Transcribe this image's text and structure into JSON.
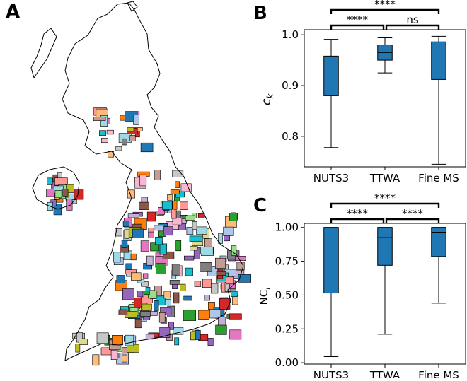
{
  "panels": {
    "a_label": "A",
    "b_label": "B",
    "c_label": "C"
  },
  "colors": {
    "box": "#1f77b4",
    "map_palette": [
      "#1f77b4",
      "#aec7e8",
      "#ff7f0e",
      "#ffbb78",
      "#2ca02c",
      "#98df8a",
      "#d62728",
      "#ff9896",
      "#9467bd",
      "#c5b0d5",
      "#8c564b",
      "#c49c94",
      "#e377c2",
      "#f7b6d2",
      "#7f7f7f",
      "#c7c7c7",
      "#bcbd22",
      "#dbdb8d",
      "#17becf",
      "#9edae5"
    ]
  },
  "chart_data": [
    {
      "type": "box",
      "panel": "B",
      "categories": [
        "NUTS3",
        "TTWA",
        "Fine MS"
      ],
      "ylabel": "c_k",
      "ylim": [
        0.74,
        1.01
      ],
      "yticks": [
        0.8,
        0.9,
        1.0
      ],
      "ytick_labels": [
        "0.8",
        "0.9",
        "1.0"
      ],
      "boxes": [
        {
          "whisker_low": 0.778,
          "q1": 0.88,
          "median": 0.923,
          "q3": 0.958,
          "whisker_high": 0.991
        },
        {
          "whisker_low": 0.925,
          "q1": 0.95,
          "median": 0.965,
          "q3": 0.98,
          "whisker_high": 0.994
        },
        {
          "whisker_low": 0.745,
          "q1": 0.912,
          "median": 0.962,
          "q3": 0.986,
          "whisker_high": 0.997
        }
      ],
      "significance": [
        {
          "from": 0,
          "to": 1,
          "label": "****"
        },
        {
          "from": 1,
          "to": 2,
          "label": "ns"
        },
        {
          "from": 0,
          "to": 2,
          "label": "****"
        }
      ]
    },
    {
      "type": "box",
      "panel": "C",
      "categories": [
        "NUTS3",
        "TTWA",
        "Fine MS"
      ],
      "ylabel": "NC_i",
      "ylim": [
        -0.01,
        1.03
      ],
      "yticks": [
        0.0,
        0.25,
        0.5,
        0.75,
        1.0
      ],
      "ytick_labels": [
        "0.00",
        "0.25",
        "0.50",
        "0.75",
        "1.00"
      ],
      "boxes": [
        {
          "whisker_low": 0.045,
          "q1": 0.515,
          "median": 0.855,
          "q3": 1.0,
          "whisker_high": 1.0
        },
        {
          "whisker_low": 0.21,
          "q1": 0.72,
          "median": 0.925,
          "q3": 1.0,
          "whisker_high": 1.0
        },
        {
          "whisker_low": 0.44,
          "q1": 0.785,
          "median": 0.965,
          "q3": 1.0,
          "whisker_high": 1.0
        }
      ],
      "significance": [
        {
          "from": 0,
          "to": 1,
          "label": "****"
        },
        {
          "from": 1,
          "to": 2,
          "label": "****"
        },
        {
          "from": 0,
          "to": 2,
          "label": "****"
        }
      ]
    }
  ]
}
